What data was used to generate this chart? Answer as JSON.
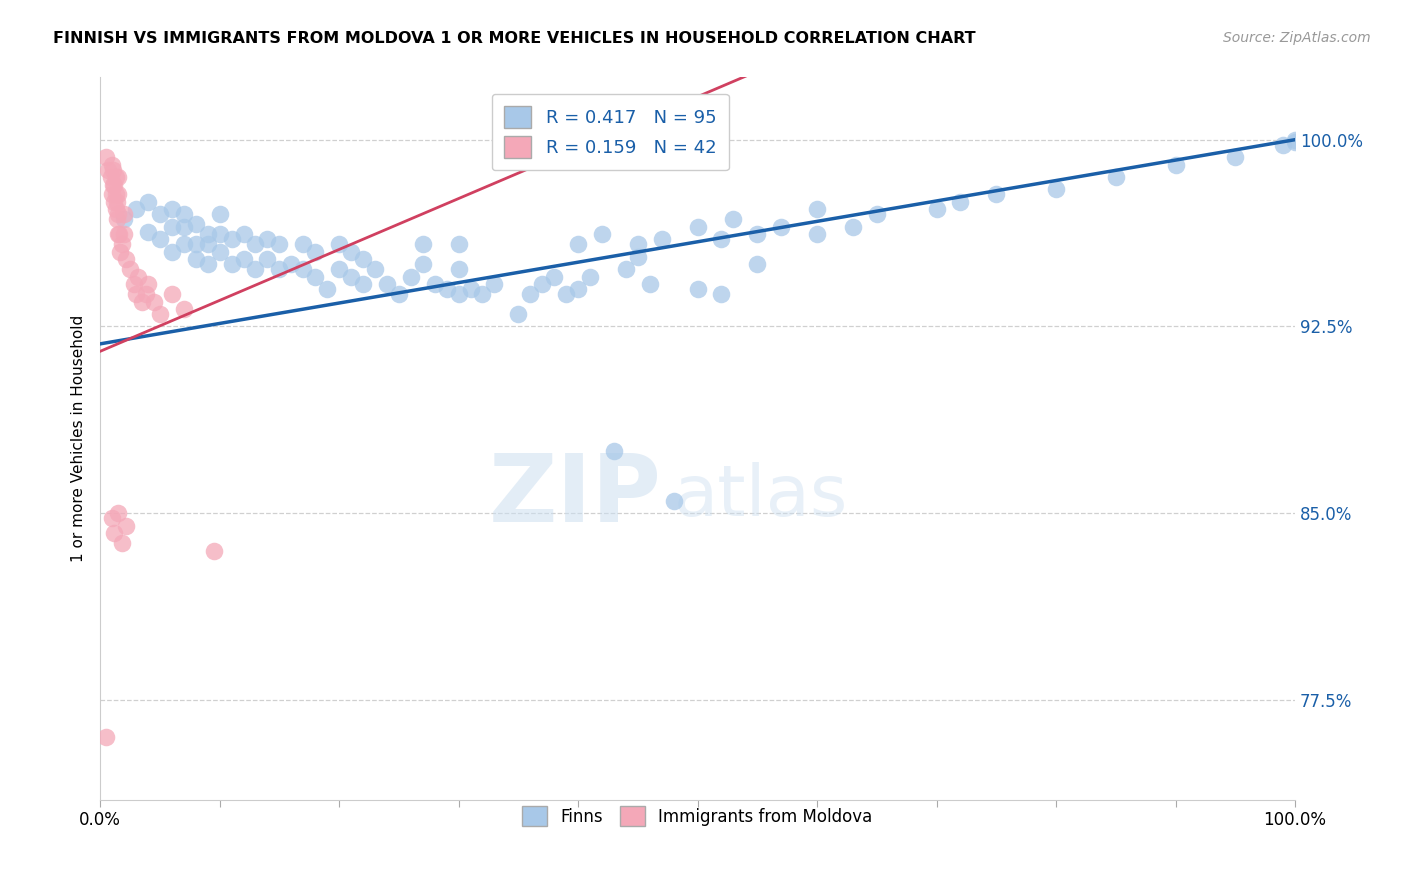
{
  "title": "FINNISH VS IMMIGRANTS FROM MOLDOVA 1 OR MORE VEHICLES IN HOUSEHOLD CORRELATION CHART",
  "source": "Source: ZipAtlas.com",
  "ylabel": "1 or more Vehicles in Household",
  "watermark_zip": "ZIP",
  "watermark_atlas": "atlas",
  "xlim": [
    0.0,
    1.0
  ],
  "ylim": [
    0.735,
    1.025
  ],
  "yticks": [
    0.775,
    0.85,
    0.925,
    1.0
  ],
  "ytick_labels": [
    "77.5%",
    "85.0%",
    "92.5%",
    "100.0%"
  ],
  "xtick_positions": [
    0.0,
    0.1,
    0.2,
    0.3,
    0.4,
    0.5,
    0.6,
    0.7,
    0.8,
    0.9,
    1.0
  ],
  "xtick_labels": [
    "0.0%",
    "",
    "",
    "",
    "",
    "",
    "",
    "",
    "",
    "",
    "100.0%"
  ],
  "blue_color": "#a8c8e8",
  "pink_color": "#f4a8b8",
  "line_blue": "#1a5fa8",
  "line_pink": "#d04060",
  "R_blue": 0.417,
  "N_blue": 95,
  "R_pink": 0.159,
  "N_pink": 42,
  "blue_line_x0": 0.0,
  "blue_line_y0": 0.918,
  "blue_line_x1": 1.0,
  "blue_line_y1": 1.0,
  "pink_line_x0": 0.0,
  "pink_line_y0": 0.915,
  "pink_line_x1": 0.22,
  "pink_line_y1": 0.96,
  "blue_x": [
    0.02,
    0.03,
    0.04,
    0.04,
    0.05,
    0.05,
    0.06,
    0.06,
    0.06,
    0.07,
    0.07,
    0.07,
    0.08,
    0.08,
    0.08,
    0.09,
    0.09,
    0.09,
    0.1,
    0.1,
    0.1,
    0.11,
    0.11,
    0.12,
    0.12,
    0.13,
    0.13,
    0.14,
    0.14,
    0.15,
    0.15,
    0.16,
    0.17,
    0.17,
    0.18,
    0.18,
    0.19,
    0.2,
    0.2,
    0.21,
    0.21,
    0.22,
    0.22,
    0.23,
    0.24,
    0.25,
    0.26,
    0.27,
    0.27,
    0.28,
    0.29,
    0.3,
    0.3,
    0.3,
    0.31,
    0.32,
    0.33,
    0.35,
    0.36,
    0.37,
    0.38,
    0.39,
    0.4,
    0.41,
    0.43,
    0.44,
    0.45,
    0.46,
    0.48,
    0.5,
    0.52,
    0.52,
    0.55,
    0.55,
    0.57,
    0.4,
    0.42,
    0.45,
    0.47,
    0.5,
    0.53,
    0.6,
    0.6,
    0.63,
    0.65,
    0.7,
    0.72,
    0.75,
    0.8,
    0.85,
    0.9,
    0.95,
    0.99,
    1.0,
    1.0
  ],
  "blue_y": [
    0.968,
    0.972,
    0.963,
    0.975,
    0.96,
    0.97,
    0.955,
    0.965,
    0.972,
    0.958,
    0.965,
    0.97,
    0.952,
    0.958,
    0.966,
    0.95,
    0.958,
    0.962,
    0.955,
    0.962,
    0.97,
    0.95,
    0.96,
    0.952,
    0.962,
    0.948,
    0.958,
    0.952,
    0.96,
    0.948,
    0.958,
    0.95,
    0.948,
    0.958,
    0.945,
    0.955,
    0.94,
    0.948,
    0.958,
    0.945,
    0.955,
    0.942,
    0.952,
    0.948,
    0.942,
    0.938,
    0.945,
    0.95,
    0.958,
    0.942,
    0.94,
    0.938,
    0.948,
    0.958,
    0.94,
    0.938,
    0.942,
    0.93,
    0.938,
    0.942,
    0.945,
    0.938,
    0.94,
    0.945,
    0.875,
    0.948,
    0.953,
    0.942,
    0.855,
    0.94,
    0.938,
    0.96,
    0.95,
    0.962,
    0.965,
    0.958,
    0.962,
    0.958,
    0.96,
    0.965,
    0.968,
    0.962,
    0.972,
    0.965,
    0.97,
    0.972,
    0.975,
    0.978,
    0.98,
    0.985,
    0.99,
    0.993,
    0.998,
    0.999,
    1.0
  ],
  "pink_x": [
    0.005,
    0.007,
    0.009,
    0.01,
    0.01,
    0.011,
    0.011,
    0.012,
    0.012,
    0.013,
    0.013,
    0.013,
    0.014,
    0.014,
    0.015,
    0.015,
    0.015,
    0.015,
    0.016,
    0.017,
    0.018,
    0.02,
    0.02,
    0.022,
    0.025,
    0.028,
    0.03,
    0.032,
    0.035,
    0.038,
    0.04,
    0.045,
    0.05,
    0.06,
    0.07,
    0.01,
    0.012,
    0.015,
    0.018,
    0.022,
    0.095,
    0.005
  ],
  "pink_y": [
    0.993,
    0.988,
    0.985,
    0.978,
    0.99,
    0.982,
    0.988,
    0.975,
    0.982,
    0.972,
    0.978,
    0.985,
    0.968,
    0.975,
    0.962,
    0.97,
    0.978,
    0.985,
    0.962,
    0.955,
    0.958,
    0.962,
    0.97,
    0.952,
    0.948,
    0.942,
    0.938,
    0.945,
    0.935,
    0.938,
    0.942,
    0.935,
    0.93,
    0.938,
    0.932,
    0.848,
    0.842,
    0.85,
    0.838,
    0.845,
    0.835,
    0.76
  ]
}
